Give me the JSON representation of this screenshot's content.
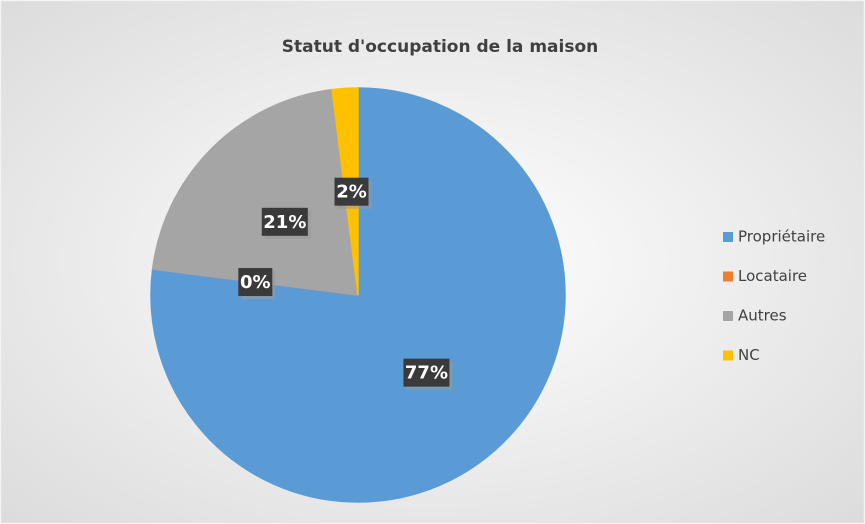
{
  "chart_data": {
    "type": "pie",
    "title": "Statut d'occupation de la maison",
    "categories": [
      "Propriétaire",
      "Locataire",
      "Autres",
      "NC"
    ],
    "values": [
      77,
      0,
      21,
      2
    ],
    "value_labels": [
      "77%",
      "0%",
      "21%",
      "2%"
    ],
    "colors": [
      "#5b9bd5",
      "#ed7d31",
      "#a5a5a5",
      "#ffc000"
    ],
    "legend": "right"
  }
}
